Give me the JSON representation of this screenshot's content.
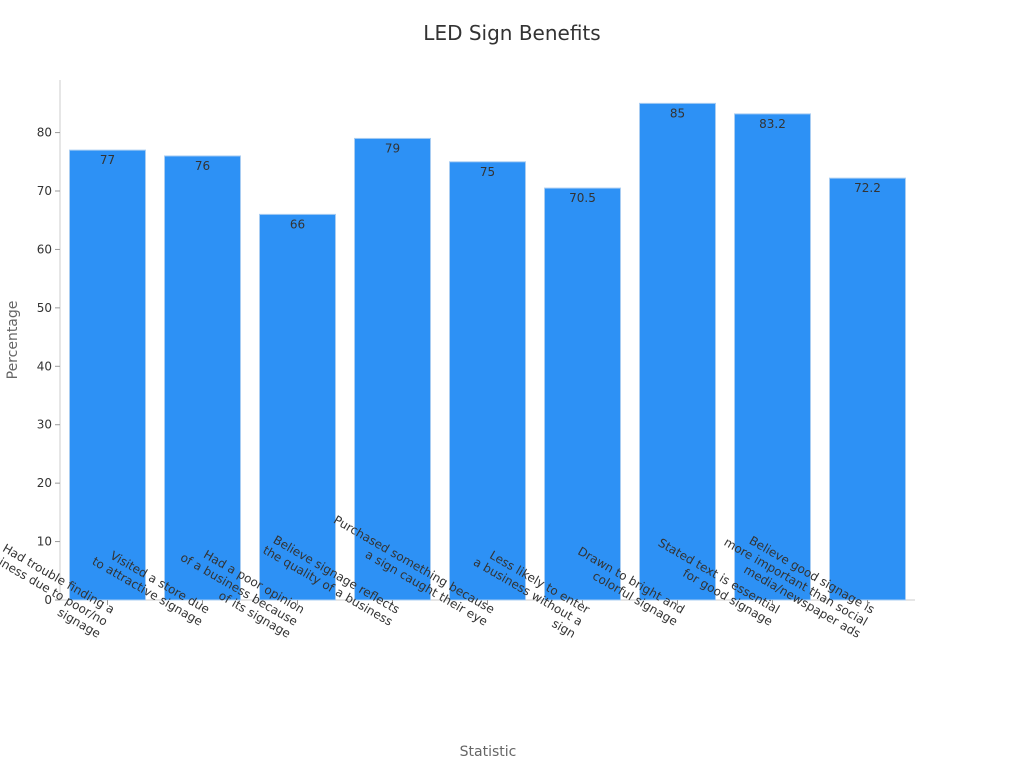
{
  "chart_data": {
    "type": "bar",
    "title": "LED Sign Benefits",
    "xlabel": "Statistic",
    "ylabel": "Percentage",
    "ylim": [
      0,
      89
    ],
    "yticks": [
      0,
      10,
      20,
      30,
      40,
      50,
      60,
      70,
      80
    ],
    "categories": [
      [
        "Had trouble finding a",
        "business due to poor/no",
        "signage"
      ],
      [
        "Visited a store due",
        "to attractive signage"
      ],
      [
        "Had a poor opinion",
        "of a business because",
        "of its signage"
      ],
      [
        "Believe signage reflects",
        "the quality of a business"
      ],
      [
        "Purchased something because",
        "a sign caught their eye"
      ],
      [
        "Less likely to enter",
        "a business without a",
        "sign"
      ],
      [
        "Drawn to bright and",
        "colorful signage"
      ],
      [
        "Stated text is essential",
        "for good signage"
      ],
      [
        "Believe good signage is",
        "more important than social",
        "media/newspaper ads"
      ]
    ],
    "values": [
      77,
      76,
      66,
      79,
      75,
      70.5,
      85,
      83.2,
      72.2
    ],
    "data_labels": [
      "77",
      "76",
      "66",
      "79",
      "75",
      "70.5",
      "85",
      "83.2",
      "72.2"
    ],
    "colors": {
      "bar": "#2d91f5"
    }
  }
}
